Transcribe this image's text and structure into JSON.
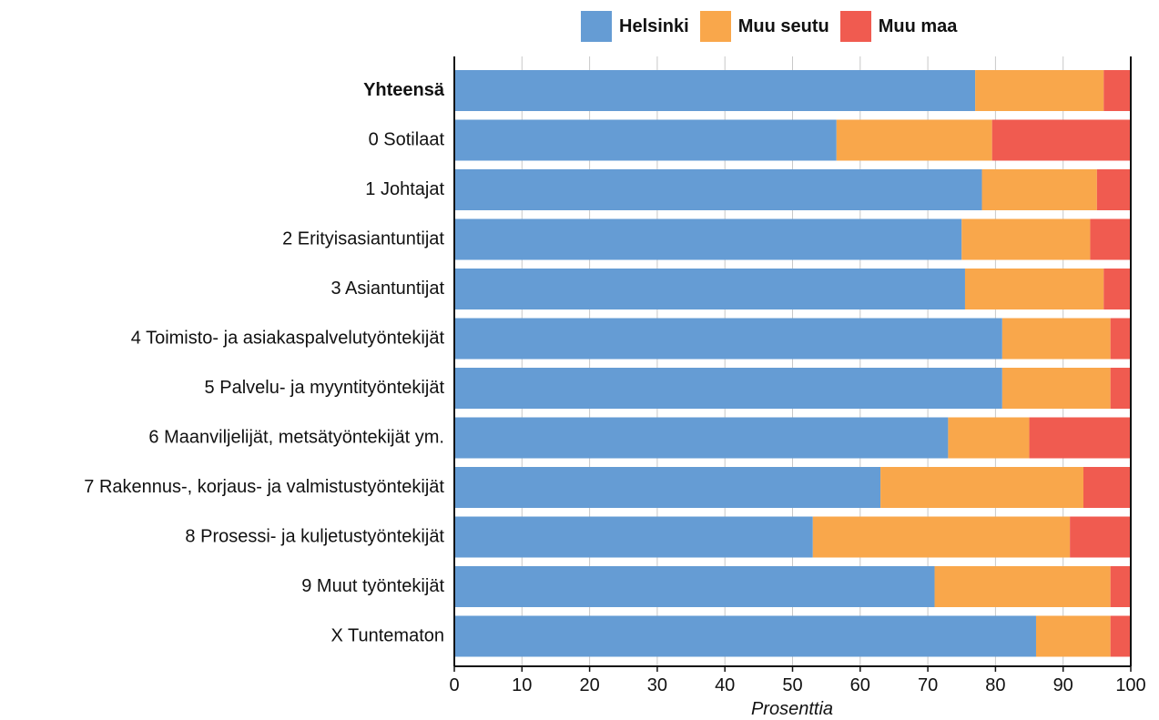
{
  "chart_data": {
    "type": "bar",
    "orientation": "horizontal",
    "stacked": true,
    "categories": [
      "Yhteensä",
      "0 Sotilaat",
      "1 Johtajat",
      "2 Erityisasiantuntijat",
      "3 Asiantuntijat",
      "4 Toimisto- ja asiakaspalvelutyöntekijät",
      "5 Palvelu- ja myyntityöntekijät",
      "6 Maanviljelijät, metsätyöntekijät ym.",
      "7 Rakennus-, korjaus- ja valmistustyöntekijät",
      "8 Prosessi- ja kuljetustyöntekijät",
      "9 Muut työntekijät",
      "X Tuntematon"
    ],
    "bold_categories": [
      "Yhteensä"
    ],
    "series": [
      {
        "name": "Helsinki",
        "color": "#659cd4",
        "values": [
          77,
          56.5,
          78,
          75,
          75.5,
          81,
          81,
          73,
          63,
          53,
          71,
          86
        ]
      },
      {
        "name": "Muu seutu",
        "color": "#f9a74b",
        "values": [
          19,
          23,
          17,
          19,
          20.5,
          16,
          16,
          12,
          30,
          38,
          26,
          11
        ]
      },
      {
        "name": "Muu maa",
        "color": "#f05b50",
        "values": [
          4,
          20.5,
          5,
          6,
          4,
          3,
          3,
          15,
          7,
          9,
          3,
          3
        ]
      }
    ],
    "xlabel": "Prosenttia",
    "xlim": [
      0,
      100
    ],
    "xticks": [
      0,
      10,
      20,
      30,
      40,
      50,
      60,
      70,
      80,
      90,
      100
    ],
    "grid": "vertical",
    "legend": "top"
  }
}
